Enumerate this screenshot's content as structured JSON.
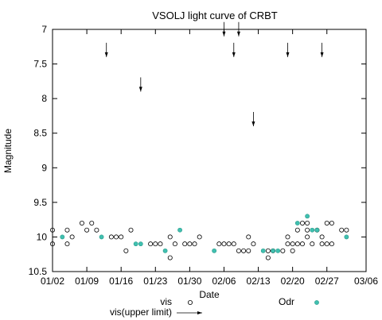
{
  "chart_data": {
    "type": "scatter",
    "title": "VSOLJ light curve of CRBT",
    "xlabel": "Date",
    "ylabel": "Magnitude",
    "x_start": "01/02",
    "x_end": "03/06",
    "x_ticks": [
      "01/02",
      "01/09",
      "01/16",
      "01/23",
      "01/30",
      "02/06",
      "02/13",
      "02/20",
      "02/27",
      "03/06"
    ],
    "y_ticks": [
      "7",
      "7.5",
      "8",
      "8.5",
      "9",
      "9.5",
      "10",
      "10.5"
    ],
    "ylim": [
      10.5,
      7.0
    ],
    "y_inverted": true,
    "grid": false,
    "legend_placement": "bottom",
    "series": [
      {
        "name": "vis",
        "marker": "open-circle",
        "color": "#000000",
        "points": [
          [
            "01/02",
            9.9
          ],
          [
            "01/02",
            10.1
          ],
          [
            "01/05",
            9.9
          ],
          [
            "01/05",
            10.1
          ],
          [
            "01/06",
            10.0
          ],
          [
            "01/08",
            9.8
          ],
          [
            "01/09",
            9.9
          ],
          [
            "01/10",
            9.8
          ],
          [
            "01/11",
            9.9
          ],
          [
            "01/14",
            10.0
          ],
          [
            "01/15",
            10.0
          ],
          [
            "01/16",
            10.0
          ],
          [
            "01/17",
            10.2
          ],
          [
            "01/18",
            9.9
          ],
          [
            "01/22",
            10.1
          ],
          [
            "01/23",
            10.1
          ],
          [
            "01/24",
            10.1
          ],
          [
            "01/26",
            10.0
          ],
          [
            "01/26",
            10.3
          ],
          [
            "01/27",
            10.1
          ],
          [
            "01/29",
            10.1
          ],
          [
            "01/30",
            10.1
          ],
          [
            "01/31",
            10.1
          ],
          [
            "02/01",
            10.0
          ],
          [
            "02/05",
            10.1
          ],
          [
            "02/06",
            10.1
          ],
          [
            "02/07",
            10.1
          ],
          [
            "02/08",
            10.1
          ],
          [
            "02/09",
            10.2
          ],
          [
            "02/10",
            10.2
          ],
          [
            "02/11",
            10.0
          ],
          [
            "02/11",
            10.2
          ],
          [
            "02/12",
            10.1
          ],
          [
            "02/15",
            10.2
          ],
          [
            "02/15",
            10.3
          ],
          [
            "02/16",
            10.2
          ],
          [
            "02/18",
            10.2
          ],
          [
            "02/19",
            10.0
          ],
          [
            "02/19",
            10.1
          ],
          [
            "02/20",
            10.1
          ],
          [
            "02/20",
            10.2
          ],
          [
            "02/21",
            9.9
          ],
          [
            "02/21",
            10.1
          ],
          [
            "02/22",
            9.8
          ],
          [
            "02/22",
            10.1
          ],
          [
            "02/23",
            9.8
          ],
          [
            "02/23",
            9.9
          ],
          [
            "02/23",
            10.0
          ],
          [
            "02/24",
            10.1
          ],
          [
            "02/25",
            9.9
          ],
          [
            "02/26",
            10.0
          ],
          [
            "02/26",
            10.1
          ],
          [
            "02/27",
            9.8
          ],
          [
            "02/27",
            10.1
          ],
          [
            "02/28",
            9.8
          ],
          [
            "02/28",
            10.1
          ],
          [
            "03/01",
            9.9
          ],
          [
            "03/02",
            9.9
          ]
        ]
      },
      {
        "name": "vis(upper limit)",
        "marker": "arrow-down",
        "color": "#000000",
        "points": [
          [
            "01/13",
            7.4
          ],
          [
            "01/20",
            7.9
          ],
          [
            "02/06",
            7.1
          ],
          [
            "02/08",
            7.4
          ],
          [
            "02/09",
            7.1
          ],
          [
            "02/12",
            8.4
          ],
          [
            "02/19",
            7.4
          ],
          [
            "02/26",
            7.4
          ]
        ]
      },
      {
        "name": "Odr",
        "marker": "filled-circle",
        "color": "#40c0b0",
        "points": [
          [
            "01/04",
            10.0
          ],
          [
            "01/12",
            10.0
          ],
          [
            "01/19",
            10.1
          ],
          [
            "01/20",
            10.1
          ],
          [
            "01/25",
            10.2
          ],
          [
            "01/28",
            9.9
          ],
          [
            "02/04",
            10.2
          ],
          [
            "02/14",
            10.2
          ],
          [
            "02/16",
            10.2
          ],
          [
            "02/17",
            10.2
          ],
          [
            "02/21",
            9.8
          ],
          [
            "02/23",
            9.7
          ],
          [
            "02/24",
            9.9
          ],
          [
            "02/25",
            9.9
          ],
          [
            "03/02",
            10.0
          ]
        ]
      }
    ]
  }
}
